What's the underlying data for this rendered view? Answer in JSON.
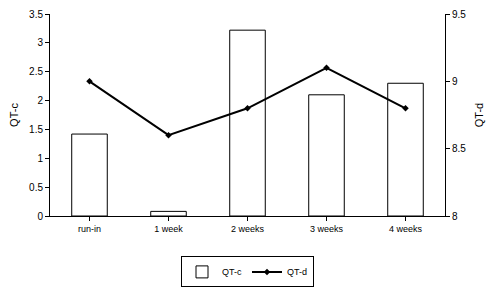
{
  "chart_data": {
    "type": "bar",
    "categories": [
      "run-in",
      "1 week",
      "2 weeks",
      "3 weeks",
      "4 weeks"
    ],
    "series": [
      {
        "name": "QT-c",
        "type": "bar",
        "color": "#ffffff",
        "values": [
          1.42,
          0.08,
          3.22,
          2.1,
          2.3
        ]
      },
      {
        "name": "QT-d",
        "type": "line",
        "axis": "y2",
        "color": "#000000",
        "marker": "diamond",
        "values": [
          9.0,
          8.6,
          8.8,
          9.1,
          8.8
        ]
      }
    ],
    "y_label": "QT-c",
    "y2_label": "QT-d",
    "ylim": [
      0,
      3.5
    ],
    "yticks": [
      0,
      0.5,
      1,
      1.5,
      2,
      2.5,
      3,
      3.5
    ],
    "y2lim": [
      8,
      9.5
    ],
    "y2ticks": [
      8,
      8.5,
      9,
      9.5
    ],
    "grid": false,
    "legend": "bottom"
  }
}
